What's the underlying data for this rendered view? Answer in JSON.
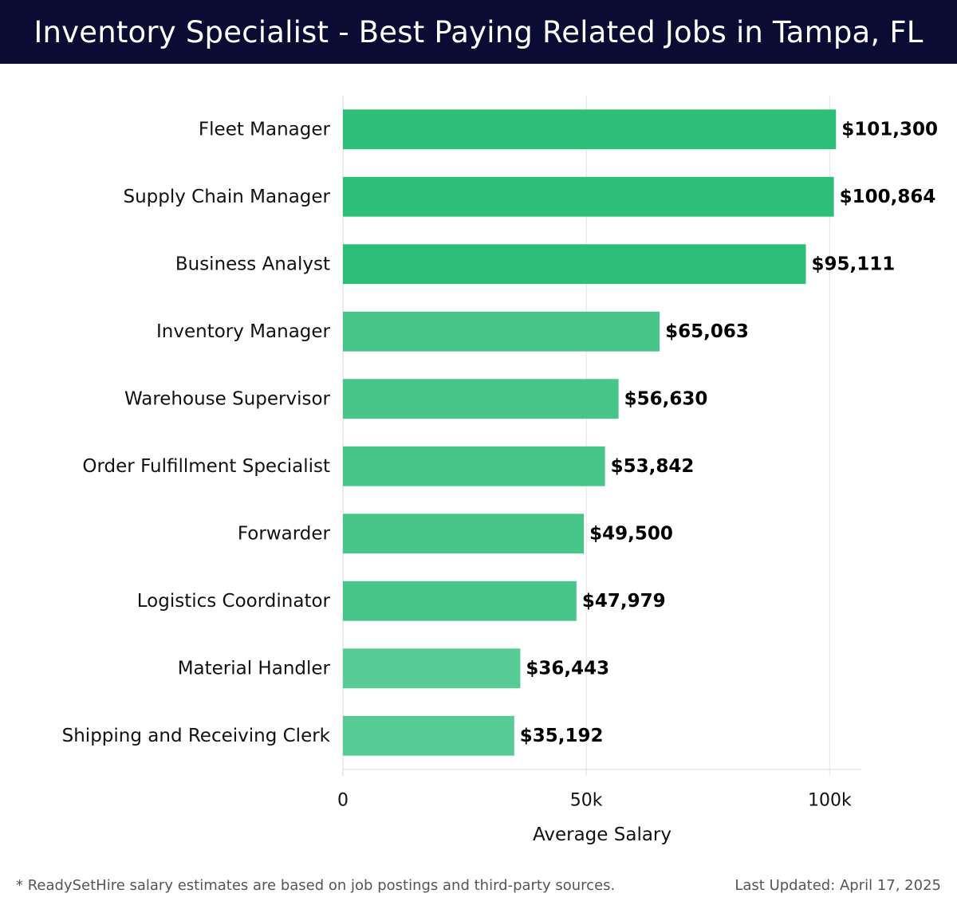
{
  "header": {
    "title": "Inventory Specialist - Best Paying Related Jobs in Tampa, FL"
  },
  "chart_data": {
    "type": "bar",
    "orientation": "horizontal",
    "categories": [
      "Fleet Manager",
      "Supply Chain Manager",
      "Business Analyst",
      "Inventory Manager",
      "Warehouse Supervisor",
      "Order Fulfillment Specialist",
      "Forwarder",
      "Logistics Coordinator",
      "Material Handler",
      "Shipping and Receiving Clerk"
    ],
    "values": [
      101300,
      100864,
      95111,
      65063,
      56630,
      53842,
      49500,
      47979,
      36443,
      35192
    ],
    "value_labels": [
      "$101,300",
      "$100,864",
      "$95,111",
      "$65,063",
      "$56,630",
      "$53,842",
      "$49,500",
      "$47,979",
      "$36,443",
      "$35,192"
    ],
    "xlabel": "Average Salary",
    "ylabel": "",
    "xlim": [
      0,
      106500
    ],
    "xticks": [
      0,
      50000,
      100000
    ],
    "xtick_labels": [
      "0",
      "50k",
      "100k"
    ],
    "grid": true,
    "colors": {
      "top": "#2dbe78",
      "mid": "#48c68a",
      "low": "#57cb95"
    }
  },
  "footer": {
    "note": "* ReadySetHire salary estimates are based on job postings and third-party sources.",
    "updated": "Last Updated: April 17, 2025"
  }
}
